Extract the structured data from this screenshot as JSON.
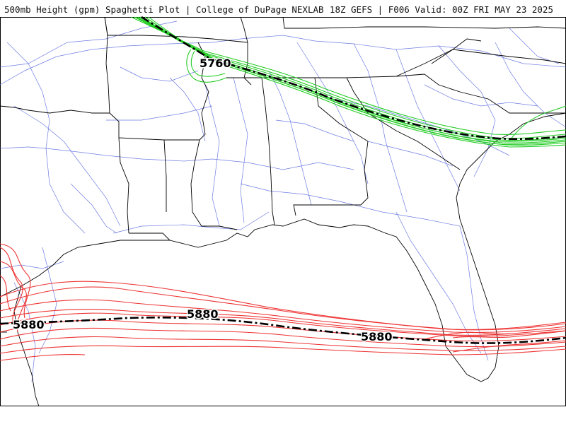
{
  "header": {
    "title": "500mb Height (gpm) Spaghetti Plot | College of DuPage NEXLAB",
    "run_info": "18Z GEFS | F006 Valid: 00Z FRI MAY 23 2025"
  },
  "contours": {
    "upper": {
      "label": "5760",
      "member_color": "#22cc22",
      "mean_color": "#000000"
    },
    "lower": {
      "label": "5880",
      "member_color": "#ee3333",
      "mean_color": "#000000"
    }
  },
  "colors": {
    "background": "#ffffff",
    "boundaries": "#000000",
    "highways": "#5566dd"
  }
}
